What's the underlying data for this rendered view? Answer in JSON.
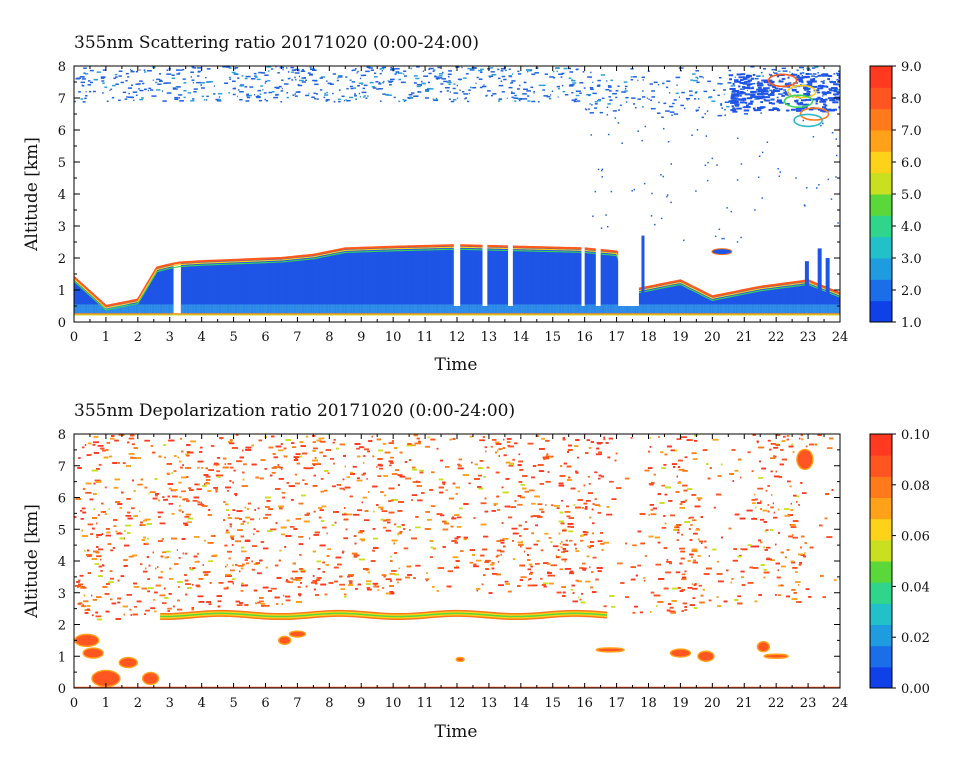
{
  "chart_data": [
    {
      "type": "heatmap",
      "title": "355nm Scattering ratio  20171020 (0:00-24:00)",
      "xlabel": "Time",
      "ylabel": "Altitude [km]",
      "xlim": [
        0,
        24
      ],
      "ylim": [
        0,
        8
      ],
      "x_ticks": [
        "0",
        "1",
        "2",
        "3",
        "4",
        "5",
        "6",
        "7",
        "8",
        "9",
        "10",
        "11",
        "12",
        "13",
        "14",
        "15",
        "16",
        "17",
        "18",
        "19",
        "20",
        "21",
        "22",
        "23",
        "24"
      ],
      "y_ticks": [
        "0",
        "1",
        "2",
        "3",
        "4",
        "5",
        "6",
        "7",
        "8"
      ],
      "colorbar": {
        "range": [
          1.0,
          9.0
        ],
        "ticks": [
          "1.0",
          "2.0",
          "3.0",
          "4.0",
          "5.0",
          "6.0",
          "7.0",
          "8.0",
          "9.0"
        ],
        "colors": [
          "#1040e8",
          "#1a6ee8",
          "#1f9be0",
          "#22c0c8",
          "#2fd58a",
          "#5ad83a",
          "#c8e020",
          "#ffd21a",
          "#ffa21a",
          "#ff7a1a",
          "#ff5520",
          "#ff3a20"
        ]
      },
      "features": {
        "boundary_layer": [
          {
            "t": 0.0,
            "top": 1.4
          },
          {
            "t": 1.0,
            "top": 0.5
          },
          {
            "t": 2.0,
            "top": 0.7
          },
          {
            "t": 2.6,
            "top": 1.7
          },
          {
            "t": 3.2,
            "top": 1.85
          },
          {
            "t": 4.0,
            "top": 1.9
          },
          {
            "t": 6.5,
            "top": 2.0
          },
          {
            "t": 7.5,
            "top": 2.1
          },
          {
            "t": 8.5,
            "top": 2.3
          },
          {
            "t": 10.0,
            "top": 2.35
          },
          {
            "t": 12.0,
            "top": 2.4
          },
          {
            "t": 14.0,
            "top": 2.35
          },
          {
            "t": 16.0,
            "top": 2.3
          },
          {
            "t": 17.0,
            "top": 2.2
          },
          {
            "t": 17.5,
            "top": 1.0
          },
          {
            "t": 19.0,
            "top": 1.3
          },
          {
            "t": 20.0,
            "top": 0.8
          },
          {
            "t": 21.5,
            "top": 1.1
          },
          {
            "t": 23.0,
            "top": 1.3
          },
          {
            "t": 24.0,
            "top": 0.9
          }
        ],
        "cirrus": [
          {
            "t_start": 20.5,
            "t_end": 24.0,
            "base": 5.8,
            "top": 7.8
          }
        ]
      }
    },
    {
      "type": "heatmap",
      "title": "355nm Depolarization ratio  20171020 (0:00-24:00)",
      "xlabel": "Time",
      "ylabel": "Altitude [km]",
      "xlim": [
        0,
        24
      ],
      "ylim": [
        0,
        8
      ],
      "x_ticks": [
        "0",
        "1",
        "2",
        "3",
        "4",
        "5",
        "6",
        "7",
        "8",
        "9",
        "10",
        "11",
        "12",
        "13",
        "14",
        "15",
        "16",
        "17",
        "18",
        "19",
        "20",
        "21",
        "22",
        "23",
        "24"
      ],
      "y_ticks": [
        "0",
        "1",
        "2",
        "3",
        "4",
        "5",
        "6",
        "7",
        "8"
      ],
      "colorbar": {
        "range": [
          0.0,
          0.1
        ],
        "ticks": [
          "0.00",
          "0.02",
          "0.04",
          "0.06",
          "0.08",
          "0.10"
        ],
        "colors": [
          "#1040e8",
          "#1a6ee8",
          "#1f9be0",
          "#22c0c8",
          "#2fd58a",
          "#5ad83a",
          "#c8e020",
          "#ffd21a",
          "#ffa21a",
          "#ff7a1a",
          "#ff5520",
          "#ff3a20"
        ]
      },
      "features": {
        "noise_floor_km": [
          {
            "t": 0.0,
            "z": 2.0
          },
          {
            "t": 3.0,
            "z": 2.4
          },
          {
            "t": 6.0,
            "z": 2.6
          },
          {
            "t": 9.0,
            "z": 2.9
          },
          {
            "t": 12.0,
            "z": 3.1
          },
          {
            "t": 16.0,
            "z": 2.7
          },
          {
            "t": 18.0,
            "z": 2.2
          },
          {
            "t": 21.0,
            "z": 2.6
          },
          {
            "t": 24.0,
            "z": 2.8
          }
        ],
        "layer_top_km": 2.4
      }
    }
  ]
}
